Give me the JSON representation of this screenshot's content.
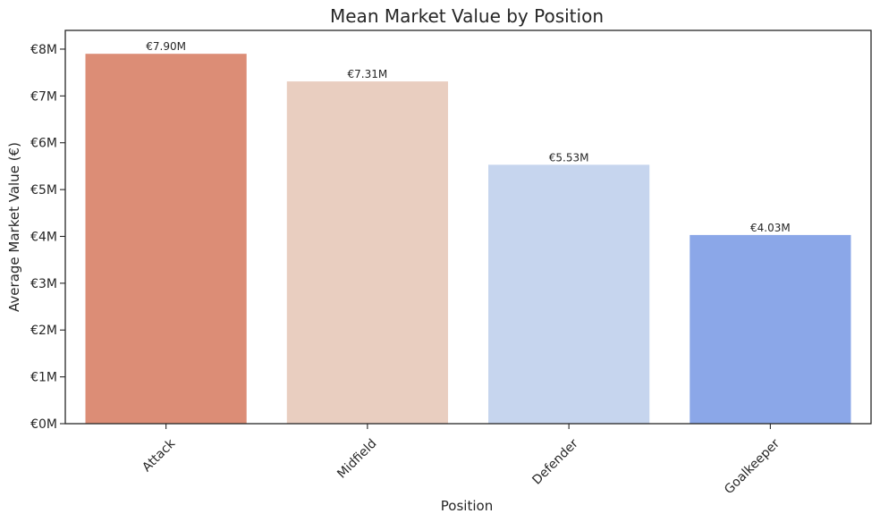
{
  "chart_data": {
    "type": "bar",
    "title": "Mean Market Value by Position",
    "xlabel": "Position",
    "ylabel": "Average Market Value (€)",
    "categories": [
      "Attack",
      "Midfield",
      "Defender",
      "Goalkeeper"
    ],
    "values": [
      7.9,
      7.31,
      5.53,
      4.03
    ],
    "value_labels": [
      "€7.90M",
      "€7.31M",
      "€5.53M",
      "€4.03M"
    ],
    "colors": [
      "#dc8d76",
      "#e9cec0",
      "#c6d5ee",
      "#8ba7e8"
    ],
    "ylim": [
      0,
      8.4
    ],
    "yticks": [
      0,
      1,
      2,
      3,
      4,
      5,
      6,
      7,
      8
    ],
    "ytick_labels": [
      "€0M",
      "€1M",
      "€2M",
      "€3M",
      "€4M",
      "€5M",
      "€6M",
      "€7M",
      "€8M"
    ],
    "xtick_rotation": 45,
    "grid": false,
    "legend": "none"
  }
}
